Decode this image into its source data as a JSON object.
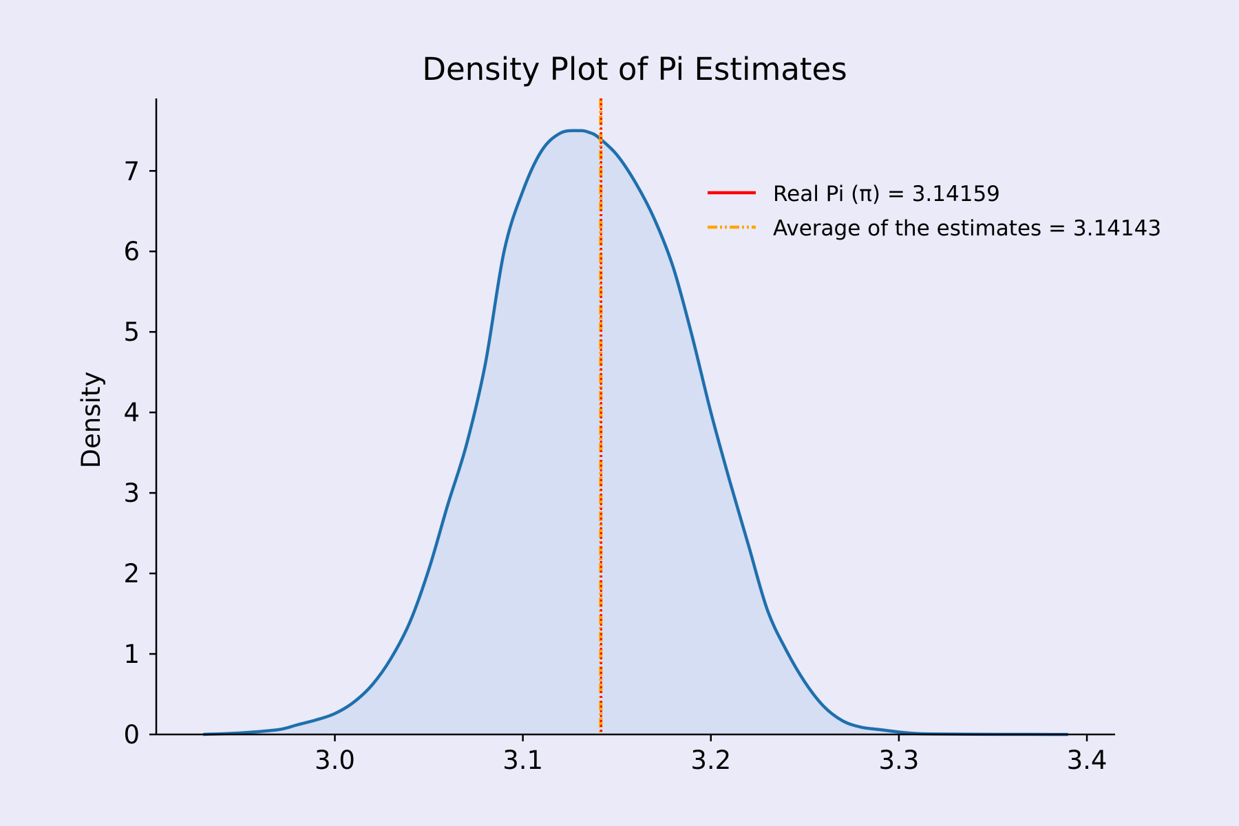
{
  "colors": {
    "background": "#eaeaf8",
    "kde_line": "#1f6fad",
    "kde_fill": "#d5def3",
    "real_pi": "#ff0000",
    "average": "#ffa500",
    "axis": "#000000"
  },
  "chart_data": {
    "type": "area",
    "title": "Density Plot of Pi Estimates",
    "xlabel": "",
    "ylabel": "Density",
    "xlim": [
      2.905,
      3.415
    ],
    "ylim": [
      0,
      7.9
    ],
    "xticks": [
      3.0,
      3.1,
      3.2,
      3.3,
      3.4
    ],
    "xtick_labels": [
      "3.0",
      "3.1",
      "3.2",
      "3.3",
      "3.4"
    ],
    "yticks": [
      0,
      1,
      2,
      3,
      4,
      5,
      6,
      7
    ],
    "ytick_labels": [
      "0",
      "1",
      "2",
      "3",
      "4",
      "5",
      "6",
      "7"
    ],
    "grid": false,
    "legend_position": "top-right",
    "series": [
      {
        "kind": "density",
        "x": [
          2.93,
          2.95,
          2.97,
          2.98,
          2.99,
          3.0,
          3.01,
          3.02,
          3.03,
          3.04,
          3.05,
          3.06,
          3.07,
          3.08,
          3.09,
          3.1,
          3.11,
          3.12,
          3.13,
          3.135,
          3.14,
          3.15,
          3.16,
          3.17,
          3.18,
          3.19,
          3.2,
          3.21,
          3.22,
          3.23,
          3.24,
          3.25,
          3.26,
          3.27,
          3.28,
          3.29,
          3.3,
          3.31,
          3.32,
          3.34,
          3.37,
          3.39
        ],
        "y": [
          0.0,
          0.02,
          0.06,
          0.12,
          0.18,
          0.26,
          0.4,
          0.62,
          0.95,
          1.4,
          2.05,
          2.85,
          3.6,
          4.6,
          6.0,
          6.75,
          7.25,
          7.47,
          7.5,
          7.48,
          7.42,
          7.2,
          6.85,
          6.4,
          5.8,
          4.95,
          4.0,
          3.15,
          2.35,
          1.55,
          1.05,
          0.65,
          0.35,
          0.17,
          0.09,
          0.06,
          0.03,
          0.01,
          0.005,
          0.002,
          0.001,
          0.0
        ]
      }
    ],
    "vlines": [
      {
        "label": "Real Pi (π) = 3.14159",
        "x": 3.14159,
        "style": "dotted"
      },
      {
        "label": "Average of the estimates = 3.14143",
        "x": 3.14143,
        "style": "dashdot"
      }
    ]
  }
}
